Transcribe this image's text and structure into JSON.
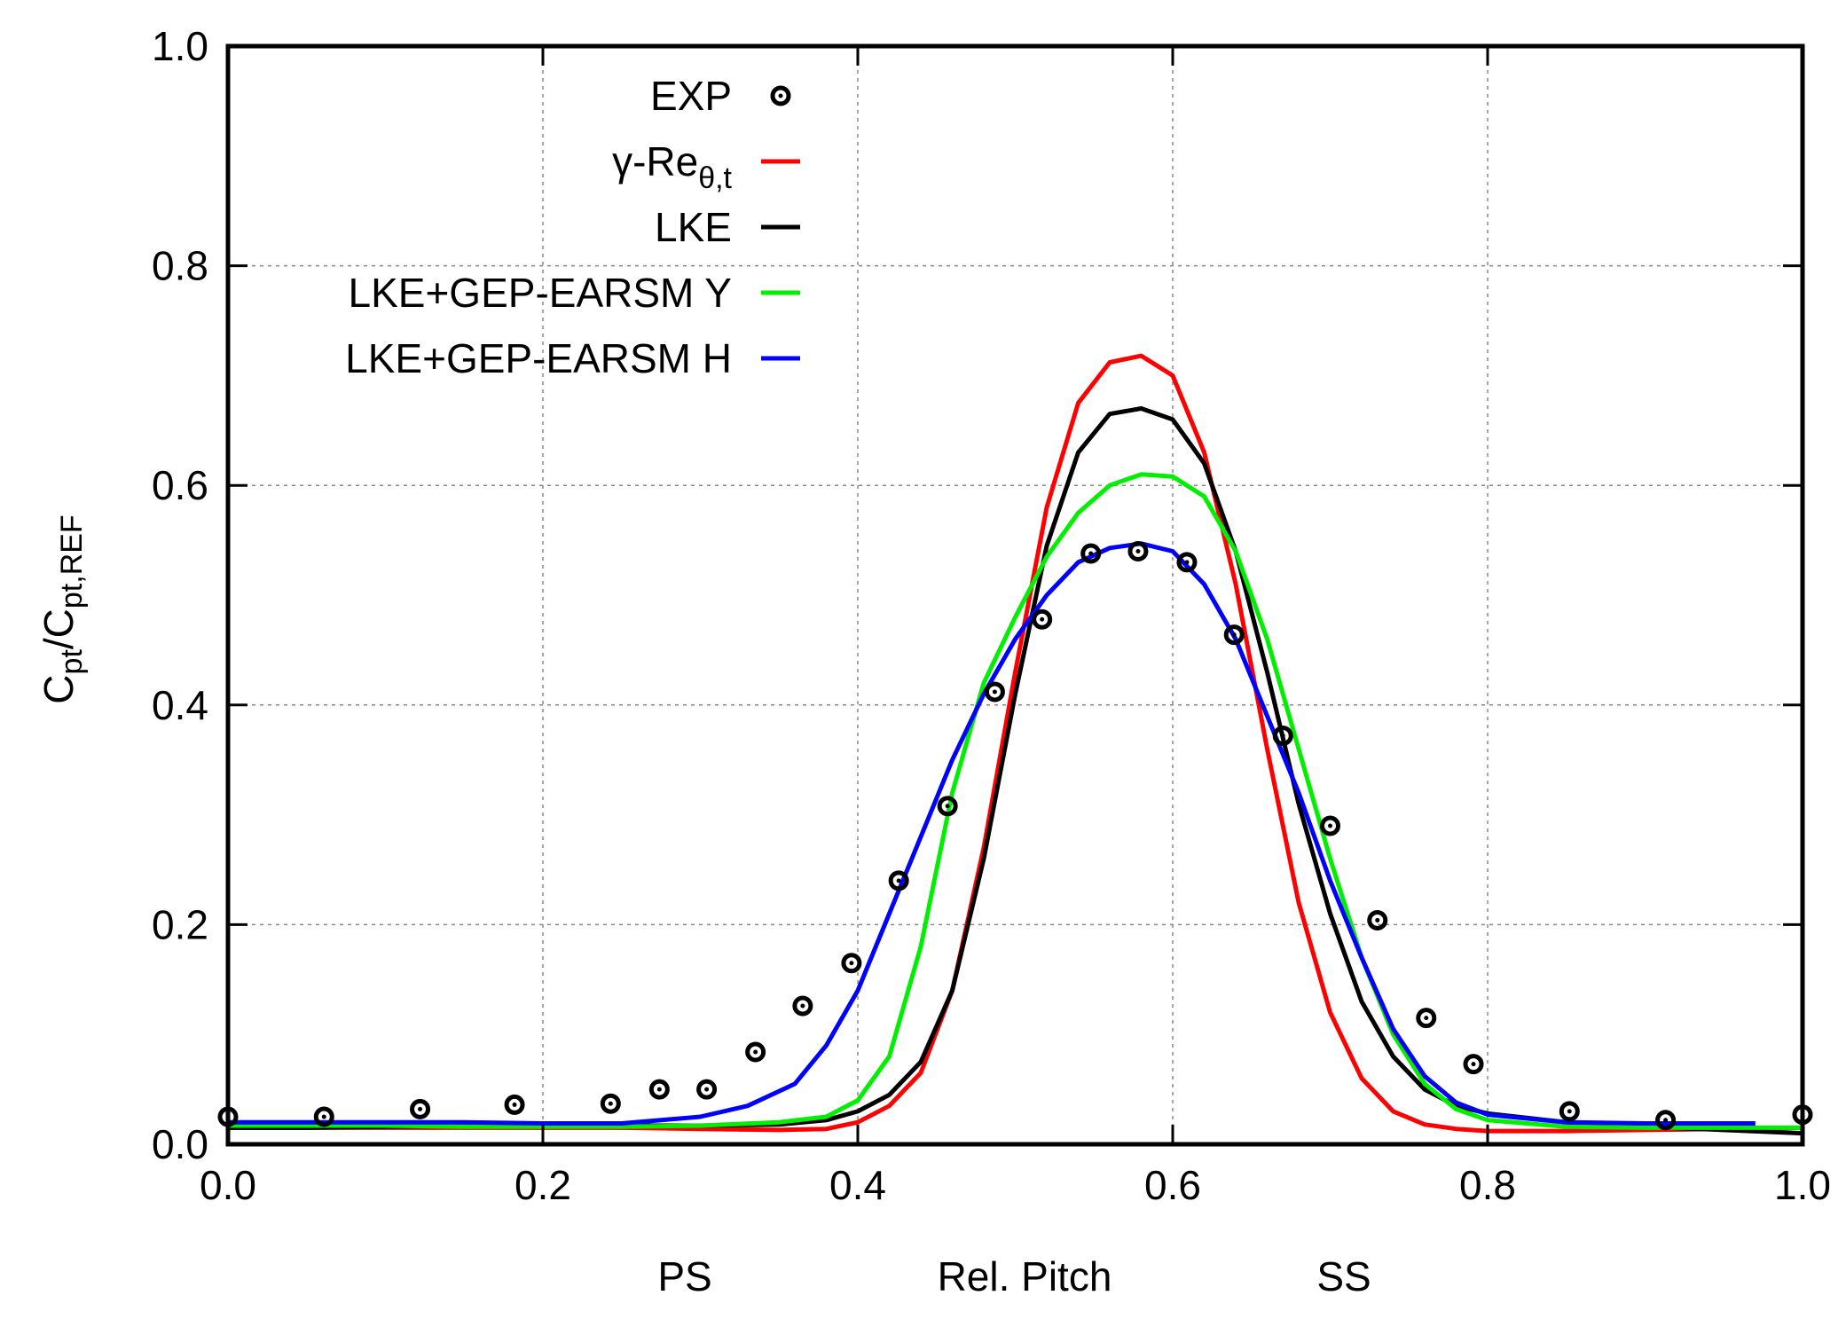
{
  "chart_data": {
    "type": "line",
    "title": "",
    "xlabel": "Rel. Pitch",
    "xlabel_left": "PS",
    "xlabel_right": "SS",
    "ylabel_main": "C",
    "ylabel_sub1": "pt",
    "ylabel_sep": "/C",
    "ylabel_sub2": "pt,REF",
    "xlim": [
      0,
      1
    ],
    "ylim": [
      0,
      1
    ],
    "grid": true,
    "legend_position": "top-left",
    "xticks": [
      "0.0",
      "0.2",
      "0.4",
      "0.6",
      "0.8",
      "1.0"
    ],
    "yticks": [
      "0.0",
      "0.2",
      "0.4",
      "0.6",
      "0.8",
      "1.0"
    ],
    "legend": [
      {
        "label": "EXP",
        "color": "#000000",
        "marker": "circle-dot"
      },
      {
        "label_main": "γ-Re",
        "label_sub": "θ,t",
        "color": "#ff0000",
        "marker": "line"
      },
      {
        "label": "LKE",
        "color": "#000000",
        "marker": "line"
      },
      {
        "label": "LKE+GEP-EARSM Y",
        "color": "#00ee00",
        "marker": "line"
      },
      {
        "label": "LKE+GEP-EARSM H",
        "color": "#0000ff",
        "marker": "line"
      }
    ],
    "series": [
      {
        "name": "EXP",
        "kind": "scatter",
        "color": "#000000",
        "x": [
          0.0,
          0.061,
          0.122,
          0.182,
          0.243,
          0.274,
          0.304,
          0.335,
          0.365,
          0.396,
          0.426,
          0.457,
          0.487,
          0.517,
          0.548,
          0.578,
          0.609,
          0.639,
          0.67,
          0.7,
          0.73,
          0.761,
          0.791,
          0.852,
          0.913,
          1.0
        ],
        "y": [
          0.025,
          0.025,
          0.032,
          0.036,
          0.037,
          0.05,
          0.05,
          0.084,
          0.126,
          0.165,
          0.24,
          0.308,
          0.412,
          0.478,
          0.538,
          0.54,
          0.53,
          0.464,
          0.372,
          0.29,
          0.204,
          0.115,
          0.073,
          0.03,
          0.022,
          0.027
        ]
      },
      {
        "name": "γ-Reθ,t",
        "kind": "line",
        "color": "#ff0000",
        "x": [
          0.0,
          0.05,
          0.1,
          0.15,
          0.2,
          0.25,
          0.3,
          0.35,
          0.38,
          0.4,
          0.42,
          0.44,
          0.46,
          0.48,
          0.5,
          0.52,
          0.54,
          0.56,
          0.58,
          0.6,
          0.62,
          0.64,
          0.66,
          0.68,
          0.7,
          0.72,
          0.74,
          0.76,
          0.78,
          0.8,
          0.85,
          0.9,
          0.95,
          1.0
        ],
        "y": [
          0.015,
          0.015,
          0.015,
          0.015,
          0.015,
          0.015,
          0.014,
          0.013,
          0.014,
          0.02,
          0.035,
          0.065,
          0.14,
          0.27,
          0.43,
          0.58,
          0.675,
          0.712,
          0.718,
          0.7,
          0.63,
          0.51,
          0.36,
          0.22,
          0.12,
          0.06,
          0.03,
          0.018,
          0.014,
          0.012,
          0.012,
          0.013,
          0.014,
          0.015
        ]
      },
      {
        "name": "LKE",
        "kind": "line",
        "color": "#000000",
        "x": [
          0.0,
          0.05,
          0.1,
          0.15,
          0.2,
          0.25,
          0.3,
          0.35,
          0.38,
          0.4,
          0.42,
          0.44,
          0.46,
          0.48,
          0.5,
          0.52,
          0.54,
          0.56,
          0.58,
          0.6,
          0.62,
          0.64,
          0.66,
          0.68,
          0.7,
          0.72,
          0.74,
          0.76,
          0.78,
          0.8,
          0.85,
          0.9,
          0.95,
          1.0
        ],
        "y": [
          0.015,
          0.015,
          0.016,
          0.017,
          0.017,
          0.017,
          0.017,
          0.018,
          0.022,
          0.03,
          0.045,
          0.075,
          0.14,
          0.26,
          0.41,
          0.545,
          0.63,
          0.665,
          0.67,
          0.66,
          0.62,
          0.54,
          0.43,
          0.31,
          0.21,
          0.13,
          0.08,
          0.05,
          0.035,
          0.028,
          0.02,
          0.016,
          0.013,
          0.01
        ]
      },
      {
        "name": "LKE+GEP-EARSM Y",
        "kind": "line",
        "color": "#00ee00",
        "x": [
          0.0,
          0.05,
          0.1,
          0.15,
          0.2,
          0.25,
          0.3,
          0.35,
          0.38,
          0.4,
          0.42,
          0.44,
          0.46,
          0.48,
          0.5,
          0.52,
          0.54,
          0.56,
          0.58,
          0.6,
          0.62,
          0.64,
          0.66,
          0.68,
          0.7,
          0.72,
          0.74,
          0.76,
          0.78,
          0.8,
          0.85,
          0.9,
          0.95,
          1.0
        ],
        "y": [
          0.017,
          0.017,
          0.017,
          0.016,
          0.016,
          0.016,
          0.017,
          0.02,
          0.025,
          0.04,
          0.08,
          0.18,
          0.32,
          0.42,
          0.48,
          0.535,
          0.575,
          0.6,
          0.61,
          0.608,
          0.59,
          0.54,
          0.46,
          0.36,
          0.26,
          0.17,
          0.1,
          0.055,
          0.032,
          0.022,
          0.016,
          0.015,
          0.015,
          0.015
        ]
      },
      {
        "name": "LKE+GEP-EARSM H",
        "kind": "line",
        "color": "#0000ff",
        "x": [
          0.0,
          0.05,
          0.1,
          0.15,
          0.2,
          0.25,
          0.3,
          0.33,
          0.36,
          0.38,
          0.4,
          0.42,
          0.44,
          0.46,
          0.48,
          0.5,
          0.52,
          0.54,
          0.56,
          0.58,
          0.6,
          0.62,
          0.64,
          0.66,
          0.68,
          0.7,
          0.72,
          0.74,
          0.76,
          0.78,
          0.8,
          0.85,
          0.9,
          0.95,
          0.97
        ],
        "y": [
          0.02,
          0.02,
          0.02,
          0.02,
          0.019,
          0.019,
          0.025,
          0.035,
          0.055,
          0.09,
          0.14,
          0.21,
          0.28,
          0.35,
          0.41,
          0.46,
          0.5,
          0.53,
          0.543,
          0.547,
          0.54,
          0.51,
          0.46,
          0.39,
          0.32,
          0.24,
          0.17,
          0.105,
          0.062,
          0.038,
          0.027,
          0.02,
          0.019,
          0.019,
          0.019
        ]
      }
    ]
  }
}
